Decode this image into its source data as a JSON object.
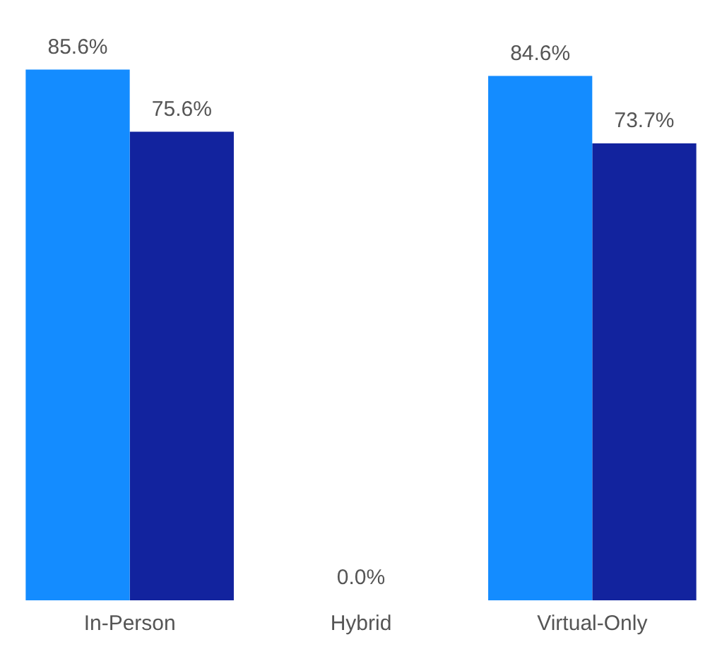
{
  "chart_data": {
    "type": "bar",
    "categories": [
      "In-Person",
      "Hybrid",
      "Virtual-Only"
    ],
    "series": [
      {
        "color": "#148cff",
        "values": [
          85.6,
          0,
          84.6
        ],
        "value_labels": [
          "85.6%",
          "0.0%",
          "84.6%"
        ]
      },
      {
        "color": "#12239e",
        "values": [
          75.6,
          null,
          73.7
        ],
        "value_labels": [
          "75.6%",
          null,
          "73.7%"
        ]
      }
    ],
    "legend": false,
    "grid": false
  }
}
